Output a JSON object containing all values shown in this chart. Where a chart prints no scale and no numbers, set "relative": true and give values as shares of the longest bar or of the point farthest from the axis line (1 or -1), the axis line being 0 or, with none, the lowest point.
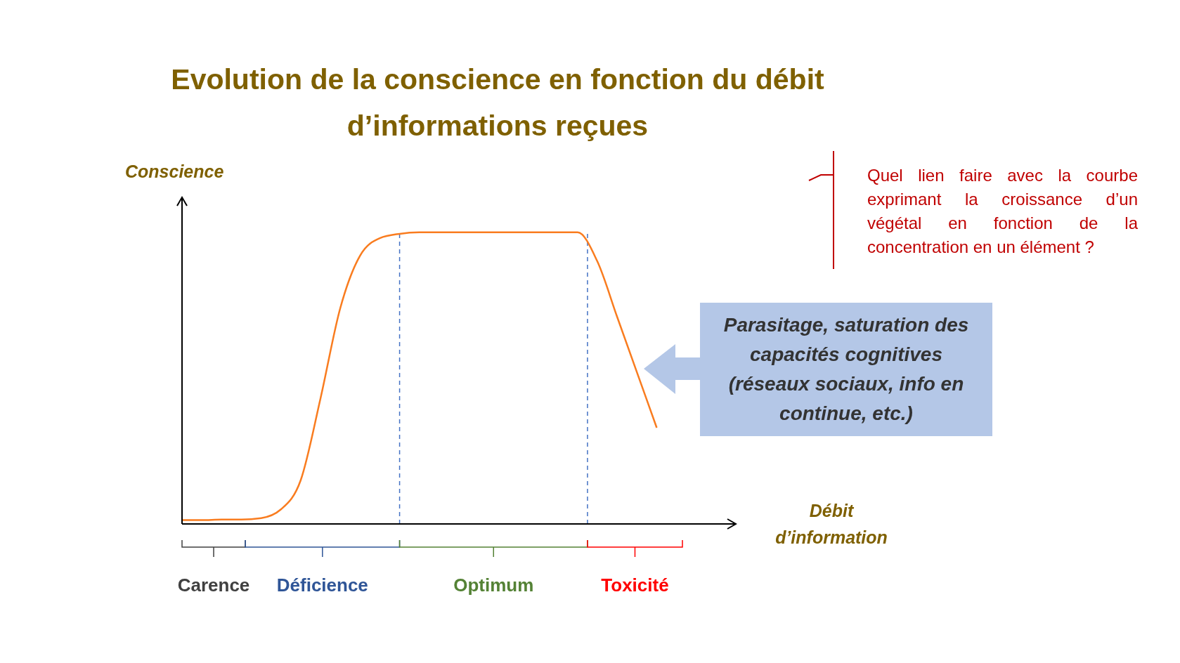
{
  "chart_data": {
    "type": "line",
    "title": "Evolution de la conscience en fonction du débit d’informations reçues",
    "xlabel": "Débit d’information",
    "ylabel": "Conscience",
    "relative": true,
    "categories": [
      null,
      null,
      null,
      null,
      null,
      null,
      null,
      null,
      null,
      null,
      null,
      null,
      null,
      null,
      null,
      null,
      null,
      null,
      null,
      null,
      null,
      null,
      null,
      null,
      null,
      null,
      null,
      null,
      null
    ],
    "series": [
      {
        "color": "#f97c1f",
        "values": [
          0.013,
          0.013,
          0.015,
          0.015,
          0.02,
          0.05,
          0.15,
          0.43,
          0.74,
          0.92,
          0.98,
          0.995,
          1,
          1,
          1,
          1,
          1,
          1,
          1,
          1,
          1,
          0.9,
          0.71,
          0.52,
          0.33,
          null,
          null,
          null,
          null
        ]
      }
    ],
    "annotations": [
      "Quel lien faire avec la courbe exprimant la croissance d’un végétal en fonction de la concentration en un élément ?",
      "Parasitage, saturation des capacités cognitives (réseaux sociaux, info en continue, etc.)",
      "Carence",
      "Déficience",
      "Optimum",
      "Toxicité"
    ],
    "grid": false,
    "legend": false,
    "marker": "none",
    "line_style": "solid"
  }
}
